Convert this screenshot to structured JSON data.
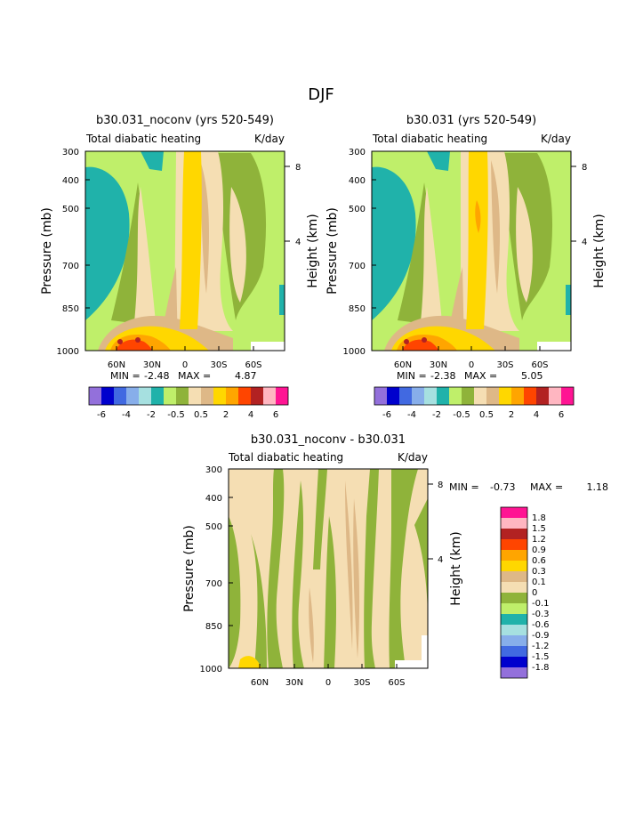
{
  "season": "DJF",
  "colors": {
    "c0": "#9370db",
    "c1": "#0000cd",
    "c2": "#4169e1",
    "c3": "#87aeea",
    "c4": "#a6e0e0",
    "c5": "#20b2aa",
    "c6": "#bfef6a",
    "c7": "#8fb33a",
    "c8": "#f5deb3",
    "c9": "#deb887",
    "c10": "#ffd700",
    "c11": "#ffa500",
    "c12": "#ff4500",
    "c13": "#b22222",
    "c14": "#ffb6c1",
    "c15": "#ff1493"
  },
  "chart_data": [
    {
      "type": "heatmap",
      "title": "b30.031_noconv (yrs 520-549)",
      "subtitle_left": "Total diabatic heating",
      "subtitle_right": "K/day",
      "ylabel": "Pressure (mb)",
      "ylabel_right": "Height (km)",
      "y_ticks": [
        "300",
        "400",
        "500",
        "700",
        "850",
        "1000"
      ],
      "y_right_ticks": [
        "8",
        "4"
      ],
      "x_ticks": [
        "60N",
        "30N",
        "0",
        "30S",
        "60S"
      ],
      "stats": {
        "min_label": "MIN =",
        "min": "-2.48",
        "max_label": "MAX =",
        "max": "4.87"
      },
      "colorbar_labels": [
        "-6",
        "-4",
        "-2",
        "-0.5",
        "0.5",
        "2",
        "4",
        "6"
      ]
    },
    {
      "type": "heatmap",
      "title": "b30.031 (yrs 520-549)",
      "subtitle_left": "Total diabatic heating",
      "subtitle_right": "K/day",
      "ylabel": "Pressure (mb)",
      "ylabel_right": "Height (km)",
      "y_ticks": [
        "300",
        "400",
        "500",
        "700",
        "850",
        "1000"
      ],
      "y_right_ticks": [
        "8",
        "4"
      ],
      "x_ticks": [
        "60N",
        "30N",
        "0",
        "30S",
        "60S"
      ],
      "stats": {
        "min_label": "MIN =",
        "min": "-2.38",
        "max_label": "MAX =",
        "max": "5.05"
      },
      "colorbar_labels": [
        "-6",
        "-4",
        "-2",
        "-0.5",
        "0.5",
        "2",
        "4",
        "6"
      ]
    },
    {
      "type": "heatmap",
      "title": "b30.031_noconv - b30.031",
      "subtitle_left": "Total diabatic heating",
      "subtitle_right": "K/day",
      "ylabel": "Pressure (mb)",
      "ylabel_right": "Height (km)",
      "y_ticks": [
        "300",
        "400",
        "500",
        "700",
        "850",
        "1000"
      ],
      "y_right_ticks": [
        "8",
        "4"
      ],
      "x_ticks": [
        "60N",
        "30N",
        "0",
        "30S",
        "60S"
      ],
      "stats": {
        "min_label": "MIN =",
        "min": "-0.73",
        "max_label": "MAX =",
        "max": "1.18"
      },
      "colorbar_labels": [
        "1.8",
        "1.5",
        "1.2",
        "0.9",
        "0.6",
        "0.3",
        "0.1",
        "0",
        "-0.1",
        "-0.3",
        "-0.6",
        "-0.9",
        "-1.2",
        "-1.5",
        "-1.8"
      ]
    }
  ]
}
